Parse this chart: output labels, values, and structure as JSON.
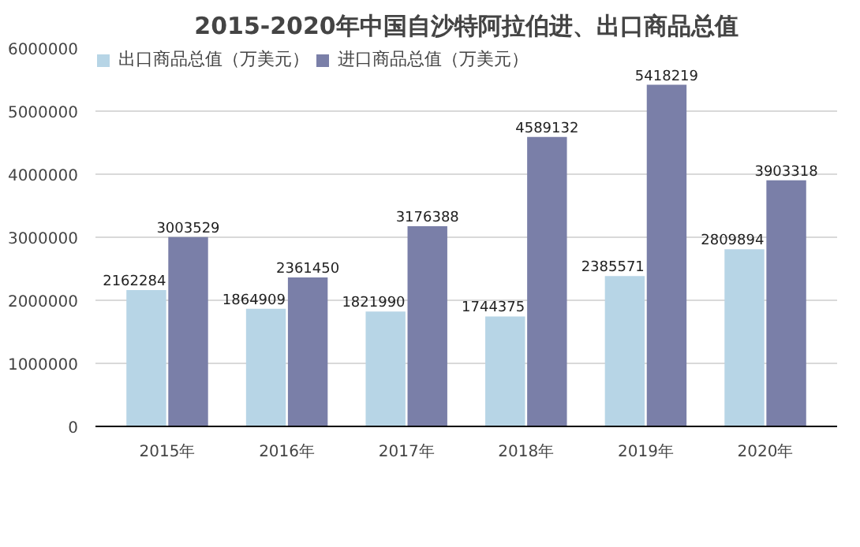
{
  "chart_data": {
    "type": "bar",
    "title": "2015-2020年中国自沙特阿拉伯进、出口商品总值",
    "categories": [
      "2015年",
      "2016年",
      "2017年",
      "2018年",
      "2019年",
      "2020年"
    ],
    "series": [
      {
        "name": "出口商品总值（万美元）",
        "color": "#b7d5e6",
        "values": [
          2162284,
          1864909,
          1821990,
          1744375,
          2385571,
          2809894
        ]
      },
      {
        "name": "进口商品总值（万美元）",
        "color": "#7a7fa8",
        "values": [
          3003529,
          2361450,
          3176388,
          4589132,
          5418219,
          3903318
        ]
      }
    ],
    "ylim": [
      0,
      6000000
    ],
    "yticks": [
      0,
      1000000,
      2000000,
      3000000,
      4000000,
      5000000,
      6000000
    ],
    "grid": "y",
    "legend": "top",
    "data_labels": true
  }
}
